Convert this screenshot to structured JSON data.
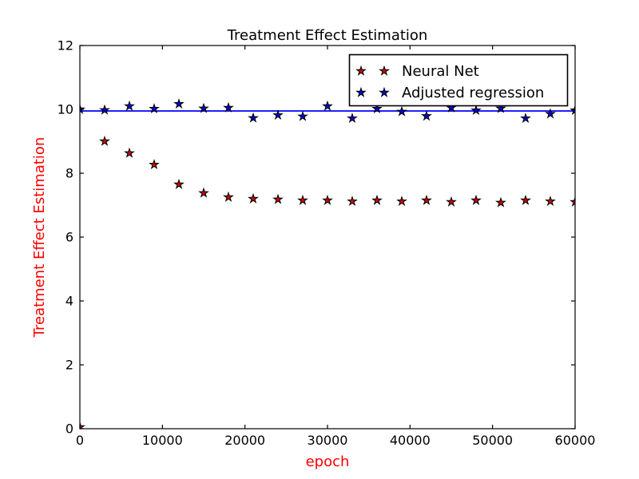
{
  "figure": {
    "background": "#ffffff"
  },
  "chart_data": {
    "type": "scatter",
    "title": "Treatment Effect Estimation",
    "xlabel": "epoch",
    "ylabel": "Treatment Effect Estimation",
    "axis_label_color": "#ff0000",
    "tick_label_color": "#000000",
    "xlim": [
      0,
      60000
    ],
    "ylim": [
      0,
      12
    ],
    "xticks": [
      0,
      10000,
      20000,
      30000,
      40000,
      50000,
      60000
    ],
    "yticks": [
      0,
      2,
      4,
      6,
      8,
      10,
      12
    ],
    "grid": false,
    "legend": {
      "position": "upper right",
      "border_color": "#000000",
      "background": "#ffffff",
      "markers_per_entry": 2
    },
    "x": [
      0,
      3000,
      6000,
      9000,
      12000,
      15000,
      18000,
      21000,
      24000,
      27000,
      30000,
      33000,
      36000,
      39000,
      42000,
      45000,
      48000,
      51000,
      54000,
      57000,
      60000
    ],
    "series": [
      {
        "name": "Neural Net",
        "marker": "star",
        "color": "#d40000",
        "edge_color": "#000000",
        "values": [
          0.05,
          9.0,
          8.63,
          8.27,
          7.65,
          7.38,
          7.25,
          7.2,
          7.18,
          7.15,
          7.15,
          7.12,
          7.15,
          7.12,
          7.15,
          7.1,
          7.15,
          7.08,
          7.15,
          7.12,
          7.1
        ]
      },
      {
        "name": "Adjusted regression",
        "marker": "star",
        "color": "#0000e0",
        "edge_color": "#000000",
        "values": [
          10.0,
          9.98,
          10.1,
          10.02,
          10.17,
          10.03,
          10.05,
          9.73,
          9.82,
          9.78,
          10.1,
          9.72,
          10.02,
          9.93,
          9.79,
          10.05,
          9.97,
          10.03,
          9.72,
          9.86,
          9.97
        ]
      }
    ],
    "reference_line": {
      "y": 9.95,
      "color": "#0000ff"
    }
  }
}
